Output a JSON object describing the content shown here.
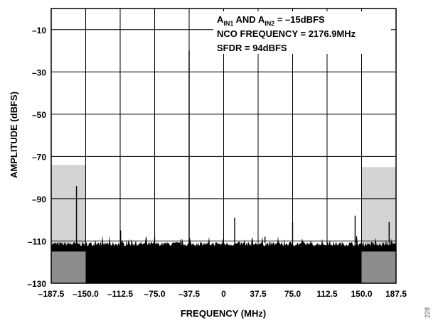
{
  "chart_data": {
    "type": "line",
    "xlabel": "FREQUENCY (MHz)",
    "ylabel": "AMPLITUDE (dBFS)",
    "xlim": [
      -187.5,
      187.5
    ],
    "ylim": [
      -130,
      0
    ],
    "x_ticks": [
      "–187.5",
      "–150.0",
      "–112.5",
      "–75.0",
      "–37.5",
      "0",
      "37.5",
      "75.0",
      "112.5",
      "150.0",
      "187.5"
    ],
    "x_tick_values": [
      -187.5,
      -150.0,
      -112.5,
      -75.0,
      -37.5,
      0,
      37.5,
      75.0,
      112.5,
      150.0,
      187.5
    ],
    "y_ticks": [
      "–10",
      "–30",
      "–50",
      "–70",
      "–90",
      "–110",
      "–130"
    ],
    "y_tick_values": [
      -10,
      -30,
      -50,
      -70,
      -90,
      -110,
      -130
    ],
    "grid": true,
    "noise_floor_dbfs": -115,
    "spurs": [
      {
        "x": -37.5,
        "y": -20
      },
      {
        "x": -160,
        "y": -84
      },
      {
        "x": -112,
        "y": -105
      },
      {
        "x": -75,
        "y": -108
      },
      {
        "x": 12,
        "y": -99
      },
      {
        "x": 45,
        "y": -108
      },
      {
        "x": 75,
        "y": -101
      },
      {
        "x": 143,
        "y": -98
      },
      {
        "x": 180,
        "y": -101
      }
    ],
    "shaded_regions": [
      {
        "x": [
          -187.5,
          -150.0
        ],
        "y": [
          -130,
          -74
        ]
      },
      {
        "x": [
          150.0,
          187.5
        ],
        "y": [
          -130,
          -75
        ]
      }
    ],
    "annotations": [
      {
        "parts": [
          {
            "t": "A"
          },
          {
            "t": "IN1",
            "sub": true
          },
          {
            "t": " AND A"
          },
          {
            "t": "IN2",
            "sub": true
          },
          {
            "t": " = –15dBFS"
          }
        ]
      },
      {
        "parts": [
          {
            "t": "NCO FREQUENCY = 2176.9MHz"
          }
        ]
      },
      {
        "parts": [
          {
            "t": "SFDR = 94dBFS"
          }
        ]
      }
    ],
    "figure_number": "228"
  },
  "colors": {
    "spectrum": "#000000",
    "shade_light": "#d3d3d3",
    "shade_dark": "#8c8c8c",
    "grid": "#000000"
  }
}
